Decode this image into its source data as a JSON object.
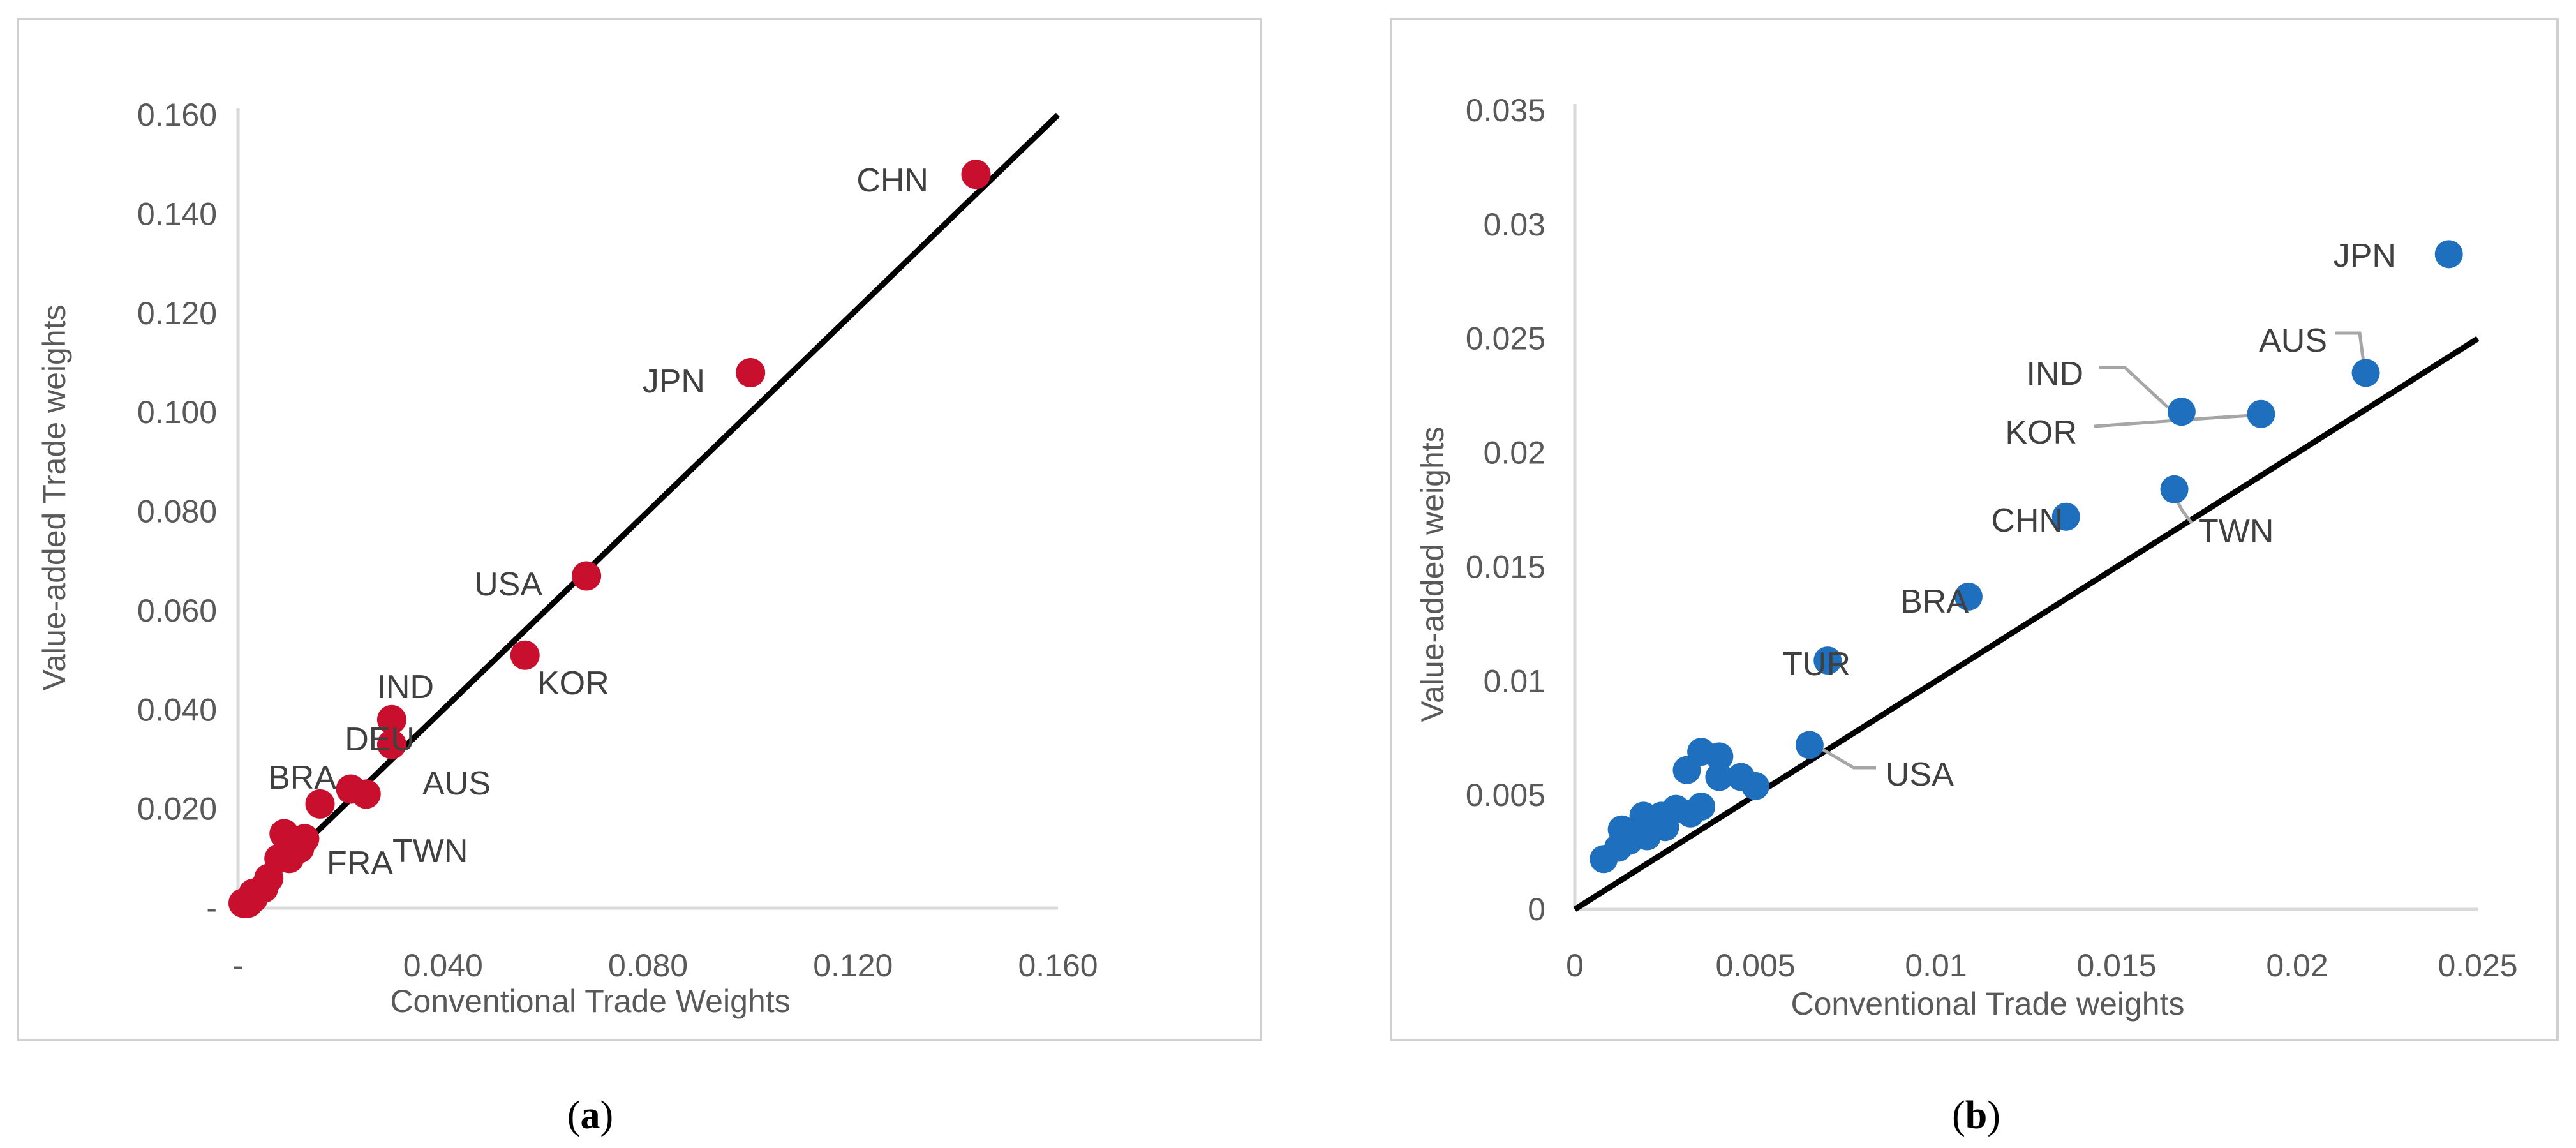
{
  "chart_data": [
    {
      "type": "scatter",
      "panel_caption": "a",
      "xlabel": "Conventional Trade Weights",
      "ylabel": "Value-added Trade weights",
      "xlim": [
        0,
        0.16
      ],
      "ylim": [
        0,
        0.16
      ],
      "x_ticks": [
        "-",
        "0.040",
        "0.080",
        "0.120",
        "0.160"
      ],
      "x_tick_values": [
        0,
        0.04,
        0.08,
        0.12,
        0.16
      ],
      "y_ticks": [
        "-",
        "0.020",
        "0.040",
        "0.060",
        "0.080",
        "0.100",
        "0.120",
        "0.140",
        "0.160"
      ],
      "y_tick_values": [
        0,
        0.02,
        0.04,
        0.06,
        0.08,
        0.1,
        0.12,
        0.14,
        0.16
      ],
      "grid": false,
      "marker_color": "#c8102e",
      "fit_line": {
        "x": [
          0,
          0.16
        ],
        "y": [
          0,
          0.16
        ]
      },
      "points": [
        {
          "x": 0.144,
          "y": 0.148
        },
        {
          "x": 0.1,
          "y": 0.108
        },
        {
          "x": 0.068,
          "y": 0.067
        },
        {
          "x": 0.056,
          "y": 0.051
        },
        {
          "x": 0.03,
          "y": 0.038
        },
        {
          "x": 0.03,
          "y": 0.033
        },
        {
          "x": 0.022,
          "y": 0.024
        },
        {
          "x": 0.025,
          "y": 0.023
        },
        {
          "x": 0.016,
          "y": 0.021
        },
        {
          "x": 0.009,
          "y": 0.015
        },
        {
          "x": 0.013,
          "y": 0.014
        },
        {
          "x": 0.008,
          "y": 0.01
        },
        {
          "x": 0.01,
          "y": 0.01
        },
        {
          "x": 0.012,
          "y": 0.012
        },
        {
          "x": 0.006,
          "y": 0.006
        },
        {
          "x": 0.005,
          "y": 0.004
        },
        {
          "x": 0.003,
          "y": 0.003
        },
        {
          "x": 0.003,
          "y": 0.002
        },
        {
          "x": 0.002,
          "y": 0.001
        },
        {
          "x": 0.001,
          "y": 0.001
        }
      ],
      "labels": [
        {
          "text": "CHN",
          "x": 0.144,
          "y": 0.148
        },
        {
          "text": "JPN",
          "x": 0.1,
          "y": 0.108
        },
        {
          "text": "USA",
          "x": 0.068,
          "y": 0.067
        },
        {
          "text": "KOR",
          "x": 0.056,
          "y": 0.051
        },
        {
          "text": "IND",
          "x": 0.03,
          "y": 0.038
        },
        {
          "text": "DEU",
          "x": 0.03,
          "y": 0.033
        },
        {
          "text": "AUS",
          "x": 0.025,
          "y": 0.023
        },
        {
          "text": "BRA",
          "x": 0.016,
          "y": 0.021
        },
        {
          "text": "TWN",
          "x": 0.022,
          "y": 0.024
        },
        {
          "text": "FRA",
          "x": 0.013,
          "y": 0.014
        }
      ]
    },
    {
      "type": "scatter",
      "panel_caption": "b",
      "xlabel": "Conventional Trade weights",
      "ylabel": "Value-added weights",
      "xlim": [
        0,
        0.025
      ],
      "ylim": [
        0,
        0.035
      ],
      "x_ticks": [
        "0",
        "0.005",
        "0.01",
        "0.015",
        "0.02",
        "0.025"
      ],
      "x_tick_values": [
        0,
        0.005,
        0.01,
        0.015,
        0.02,
        0.025
      ],
      "y_ticks": [
        "0",
        "0.005",
        "0.01",
        "0.015",
        "0.02",
        "0.025",
        "0.03",
        "0.035"
      ],
      "y_tick_values": [
        0,
        0.005,
        0.01,
        0.015,
        0.02,
        0.025,
        0.03,
        0.035
      ],
      "grid": false,
      "marker_color": "#1f6fbf",
      "fit_line": {
        "x": [
          0,
          0.025
        ],
        "y": [
          0,
          0.025
        ]
      },
      "points": [
        {
          "x": 0.0242,
          "y": 0.0287
        },
        {
          "x": 0.0219,
          "y": 0.0235
        },
        {
          "x": 0.0168,
          "y": 0.0218
        },
        {
          "x": 0.019,
          "y": 0.0217
        },
        {
          "x": 0.0166,
          "y": 0.0184
        },
        {
          "x": 0.0136,
          "y": 0.0172
        },
        {
          "x": 0.0109,
          "y": 0.0137
        },
        {
          "x": 0.007,
          "y": 0.0109
        },
        {
          "x": 0.0065,
          "y": 0.0072
        },
        {
          "x": 0.0035,
          "y": 0.0069
        },
        {
          "x": 0.004,
          "y": 0.0067
        },
        {
          "x": 0.0031,
          "y": 0.0061
        },
        {
          "x": 0.004,
          "y": 0.0058
        },
        {
          "x": 0.0046,
          "y": 0.0058
        },
        {
          "x": 0.005,
          "y": 0.0054
        },
        {
          "x": 0.0035,
          "y": 0.0045
        },
        {
          "x": 0.0028,
          "y": 0.0044
        },
        {
          "x": 0.0032,
          "y": 0.0042
        },
        {
          "x": 0.0024,
          "y": 0.0041
        },
        {
          "x": 0.0019,
          "y": 0.0041
        },
        {
          "x": 0.0021,
          "y": 0.0038
        },
        {
          "x": 0.0025,
          "y": 0.0036
        },
        {
          "x": 0.0013,
          "y": 0.0035
        },
        {
          "x": 0.0017,
          "y": 0.0033
        },
        {
          "x": 0.002,
          "y": 0.0032
        },
        {
          "x": 0.0015,
          "y": 0.003
        },
        {
          "x": 0.0012,
          "y": 0.0027
        },
        {
          "x": 0.0008,
          "y": 0.0022
        }
      ],
      "labels": [
        {
          "text": "JPN",
          "x": 0.0242,
          "y": 0.0287,
          "leader": false
        },
        {
          "text": "AUS",
          "x": 0.0219,
          "y": 0.0235,
          "leader": true
        },
        {
          "text": "IND",
          "x": 0.0168,
          "y": 0.0218,
          "leader": true
        },
        {
          "text": "KOR",
          "x": 0.019,
          "y": 0.0217,
          "leader": true
        },
        {
          "text": "TWN",
          "x": 0.0166,
          "y": 0.0184,
          "leader": true
        },
        {
          "text": "CHN",
          "x": 0.0136,
          "y": 0.0172,
          "leader": false
        },
        {
          "text": "BRA",
          "x": 0.0109,
          "y": 0.0137,
          "leader": false
        },
        {
          "text": "TUR",
          "x": 0.007,
          "y": 0.0109,
          "leader": false
        },
        {
          "text": "USA",
          "x": 0.0065,
          "y": 0.0072,
          "leader": true
        }
      ]
    }
  ]
}
